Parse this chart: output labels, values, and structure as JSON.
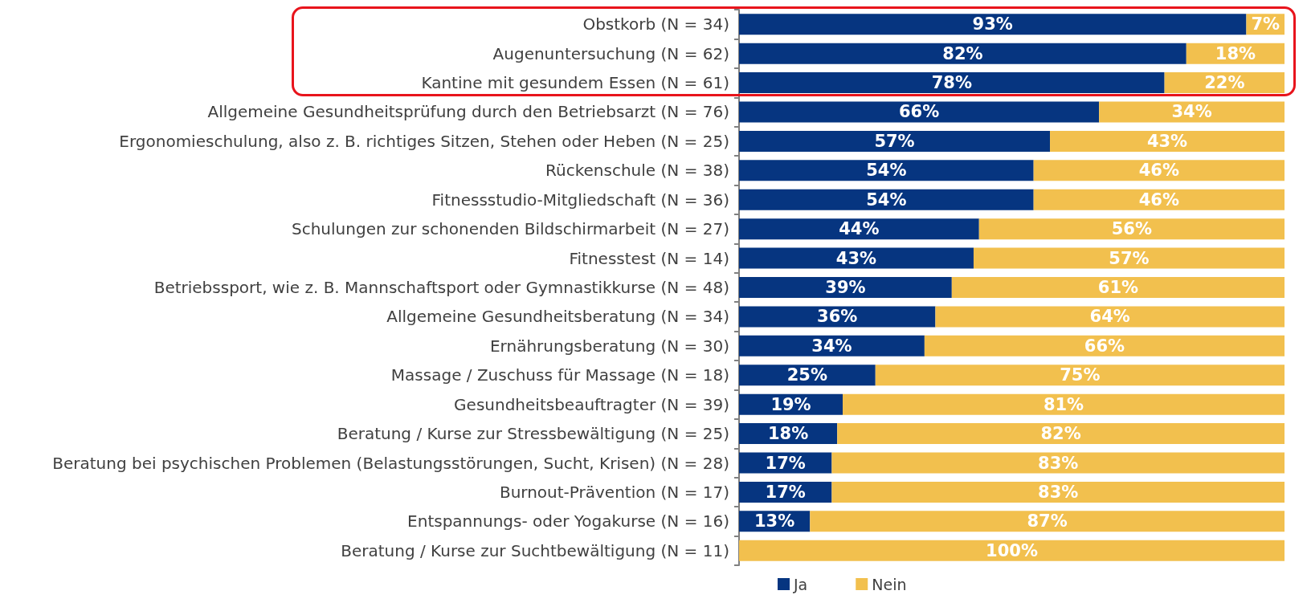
{
  "chart_data": {
    "type": "bar",
    "orientation": "horizontal",
    "stacked": true,
    "legend": "bottom",
    "tick_labels": "y",
    "categories": [
      "Obstkorb (N = 34)",
      "Augenuntersuchung (N = 62)",
      "Kantine mit gesundem Essen (N = 61)",
      "Allgemeine Gesundheitsprüfung durch den Betriebsarzt (N = 76)",
      "Ergonomieschulung, also z. B. richtiges Sitzen, Stehen oder Heben (N = 25)",
      "Rückenschule (N = 38)",
      "Fitnessstudio-Mitgliedschaft (N = 36)",
      "Schulungen zur schonenden Bildschirmarbeit (N = 27)",
      "Fitnesstest (N = 14)",
      "Betriebssport, wie z. B. Mannschaftsport oder Gymnastikkurse (N = 48)",
      "Allgemeine Gesundheitsberatung (N = 34)",
      "Ernährungsberatung (N = 30)",
      "Massage / Zuschuss für Massage (N = 18)",
      "Gesundheitsbeauftragter (N = 39)",
      "Beratung / Kurse zur Stressbewältigung (N = 25)",
      "Beratung bei psychischen Problemen (Belastungsstörungen, Sucht, Krisen) (N = 28)",
      "Burnout-Prävention (N = 17)",
      "Entspannungs- oder Yogakurse (N = 16)",
      "Beratung / Kurse zur Suchtbewältigung (N = 11)"
    ],
    "series": [
      {
        "name": "Ja",
        "color": "#063580",
        "values": [
          93,
          82,
          78,
          66,
          57,
          54,
          54,
          44,
          43,
          39,
          36,
          34,
          25,
          19,
          18,
          17,
          17,
          13,
          null
        ],
        "value_labels": [
          "93%",
          "82%",
          "78%",
          "66%",
          "57%",
          "54%",
          "54%",
          "44%",
          "43%",
          "39%",
          "36%",
          "34%",
          "25%",
          "19%",
          "18%",
          "17%",
          "17%",
          "13%",
          null
        ]
      },
      {
        "name": "Nein",
        "color": "#f2c04e",
        "values": [
          7,
          18,
          22,
          34,
          43,
          46,
          46,
          56,
          57,
          61,
          64,
          66,
          75,
          81,
          82,
          83,
          83,
          87,
          100
        ],
        "value_labels": [
          "7%",
          "18%",
          "22%",
          "34%",
          "43%",
          "46%",
          "46%",
          "56%",
          "57%",
          "61%",
          "64%",
          "66%",
          "75%",
          "81%",
          "82%",
          "83%",
          "83%",
          "87%",
          "100%"
        ]
      }
    ]
  }
}
